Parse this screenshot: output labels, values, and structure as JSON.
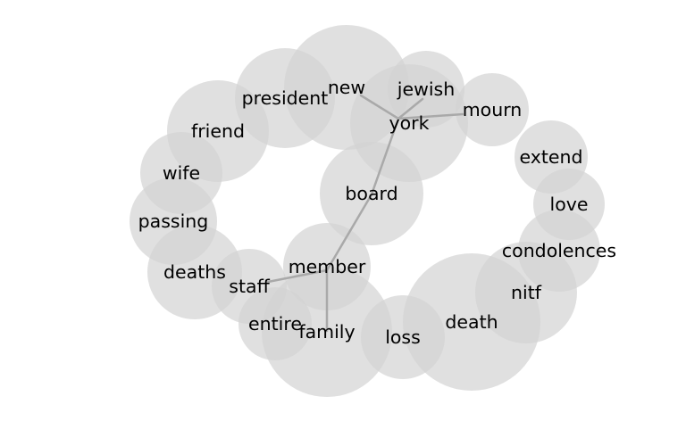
{
  "diagram": {
    "nodes": [
      {
        "id": "new",
        "label": "new"
      },
      {
        "id": "york",
        "label": "york"
      },
      {
        "id": "jewish",
        "label": "jewish"
      },
      {
        "id": "mourn",
        "label": "mourn"
      },
      {
        "id": "president",
        "label": "president"
      },
      {
        "id": "friend",
        "label": "friend"
      },
      {
        "id": "wife",
        "label": "wife"
      },
      {
        "id": "passing",
        "label": "passing"
      },
      {
        "id": "deaths",
        "label": "deaths"
      },
      {
        "id": "staff",
        "label": "staff"
      },
      {
        "id": "entire",
        "label": "entire"
      },
      {
        "id": "family",
        "label": "family"
      },
      {
        "id": "member",
        "label": "member"
      },
      {
        "id": "board",
        "label": "board"
      },
      {
        "id": "loss",
        "label": "loss"
      },
      {
        "id": "death",
        "label": "death"
      },
      {
        "id": "nitf",
        "label": "nitf"
      },
      {
        "id": "condolences",
        "label": "condolences"
      },
      {
        "id": "love",
        "label": "love"
      },
      {
        "id": "extend",
        "label": "extend"
      }
    ],
    "links": [
      {
        "source": "new",
        "target": "york"
      },
      {
        "source": "york",
        "target": "jewish"
      },
      {
        "source": "york",
        "target": "mourn"
      },
      {
        "source": "york",
        "target": "board"
      },
      {
        "source": "board",
        "target": "member"
      },
      {
        "source": "member",
        "target": "staff"
      },
      {
        "source": "member",
        "target": "family"
      }
    ]
  }
}
